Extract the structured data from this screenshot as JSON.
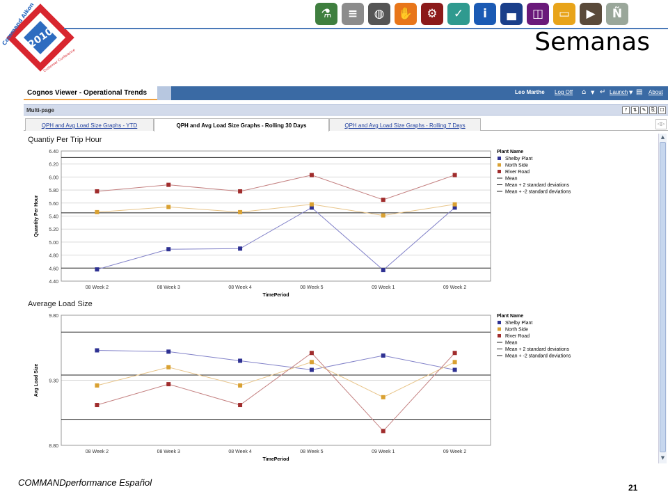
{
  "slide": {
    "title": "Semanas",
    "footer": "COMMANDperformance Español",
    "page_number": "21",
    "logo": {
      "brand": "Command Alkon",
      "year": "2010",
      "event": "Customer Conference",
      "colors": [
        "#d8262f",
        "#2e6cc0",
        "#f5f5f5"
      ]
    },
    "icon_bar": [
      {
        "name": "flask-icon",
        "color": "#3f7f3f",
        "glyph": "⚗"
      },
      {
        "name": "road-icon",
        "color": "#8c8c8c",
        "glyph": "≡"
      },
      {
        "name": "globe-icon",
        "color": "#555555",
        "glyph": "◍"
      },
      {
        "name": "hand-icon",
        "color": "#e8761a",
        "glyph": "✋"
      },
      {
        "name": "gears-icon",
        "color": "#8c1a1a",
        "glyph": "⚙"
      },
      {
        "name": "check-icon",
        "color": "#2f9a8f",
        "glyph": "✓"
      },
      {
        "name": "info-icon",
        "color": "#1a5ab4",
        "glyph": "i"
      },
      {
        "name": "desk-icon",
        "color": "#1a3f8a",
        "glyph": "▄"
      },
      {
        "name": "panels-icon",
        "color": "#6a1a7a",
        "glyph": "◫"
      },
      {
        "name": "window-icon",
        "color": "#e8a41a",
        "glyph": "▭"
      },
      {
        "name": "truck-icon",
        "color": "#5a4a3a",
        "glyph": "▶"
      },
      {
        "name": "n-badge-icon",
        "color": "#9aa79a",
        "glyph": "Ñ"
      }
    ]
  },
  "cognos": {
    "app_title": "Cognos Viewer - Operational Trends",
    "user": "Leo Marthe",
    "log_off": "Log Off",
    "launch": "Launch",
    "about": "About",
    "section_label": "Multi-page",
    "toolbar_buttons": [
      "?",
      "⇅",
      "✎",
      "⎘",
      "☐"
    ],
    "tabs": [
      {
        "label": "QPH and Avg Load Size Graphs - YTD",
        "active": false
      },
      {
        "label": "QPH and Avg Load Size Graphs - Rolling 30 Days",
        "active": true
      },
      {
        "label": "QPH and Avg Load Size Graphs - Rolling 7 Days",
        "active": false
      }
    ]
  },
  "chart_data": [
    {
      "type": "line",
      "title": "Quantiy Per Trip Hour",
      "xlabel": "TimePeriod",
      "ylabel": "Quantity Per Hour",
      "ylim": [
        4.4,
        6.4
      ],
      "yticks": [
        "4.40",
        "4.60",
        "4.80",
        "5.00",
        "5.20",
        "5.40",
        "5.60",
        "5.80",
        "6.00",
        "6.20",
        "6.40"
      ],
      "categories": [
        "08 Week 2",
        "08 Week 3",
        "08 Week 4",
        "08 Week 5",
        "09 Week 1",
        "09 Week 2"
      ],
      "legend_title": "Plant Name",
      "legend_position": "right",
      "series": [
        {
          "name": "Shelby Plant",
          "color": "#2e3192",
          "line": "#8080c8",
          "values": [
            4.58,
            4.89,
            4.9,
            5.53,
            4.57,
            5.53
          ]
        },
        {
          "name": "North Side",
          "color": "#d9a132",
          "line": "#e8c488",
          "values": [
            5.46,
            5.54,
            5.46,
            5.58,
            5.41,
            5.58
          ]
        },
        {
          "name": "River Road",
          "color": "#a02c2c",
          "line": "#c48080",
          "values": [
            5.78,
            5.88,
            5.78,
            6.03,
            5.65,
            6.03
          ]
        }
      ],
      "reference_lines": [
        {
          "name": "Mean",
          "value": 5.45
        },
        {
          "name": "Mean + 2 standard deviations",
          "value": 6.3
        },
        {
          "name": "Mean + -2 standard deviations",
          "value": 4.6
        }
      ]
    },
    {
      "type": "line",
      "title": "Average Load Size",
      "xlabel": "TimePeriod",
      "ylabel": "Avg Load Size",
      "ylim": [
        8.8,
        9.8
      ],
      "yticks": [
        "8.80",
        "9.30",
        "9.80"
      ],
      "categories": [
        "08 Week 2",
        "08 Week 3",
        "08 Week 4",
        "08 Week 5",
        "09 Week 1",
        "09 Week 2"
      ],
      "legend_title": "Plant Name",
      "legend_position": "right",
      "series": [
        {
          "name": "Shelby Plant",
          "color": "#2e3192",
          "line": "#8080c8",
          "values": [
            9.53,
            9.52,
            9.45,
            9.38,
            9.49,
            9.38
          ]
        },
        {
          "name": "North Side",
          "color": "#d9a132",
          "line": "#e8c488",
          "values": [
            9.26,
            9.4,
            9.26,
            9.44,
            9.17,
            9.44
          ]
        },
        {
          "name": "River Road",
          "color": "#a02c2c",
          "line": "#c48080",
          "values": [
            9.11,
            9.27,
            9.11,
            9.51,
            8.91,
            9.51
          ]
        }
      ],
      "reference_lines": [
        {
          "name": "Mean",
          "value": 9.34
        },
        {
          "name": "Mean + 2 standard deviations",
          "value": 9.67
        },
        {
          "name": "Mean + -2 standard deviations",
          "value": 9.0
        }
      ]
    }
  ]
}
